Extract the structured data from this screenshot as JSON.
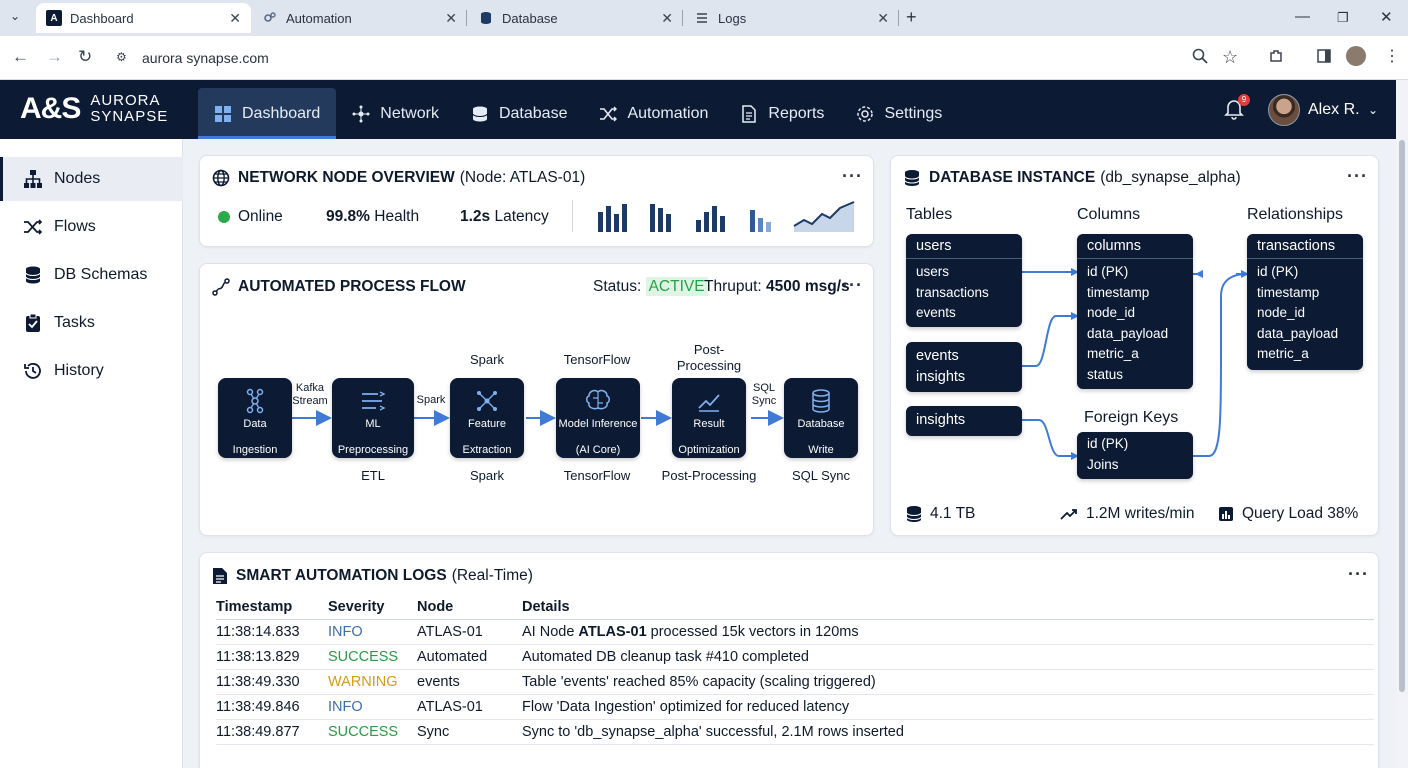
{
  "browser": {
    "tabs": [
      {
        "label": "Dashboard",
        "active": true
      },
      {
        "label": "Automation",
        "active": false
      },
      {
        "label": "Database",
        "active": false
      },
      {
        "label": "Logs",
        "active": false
      }
    ],
    "url": "aurora synapse.com"
  },
  "app": {
    "logo_mark": "A&S",
    "logo_line1": "AURORA",
    "logo_line2": "SYNAPSE",
    "nav": [
      {
        "label": "Dashboard",
        "icon": "grid-icon",
        "active": true
      },
      {
        "label": "Network",
        "icon": "network-icon"
      },
      {
        "label": "Database",
        "icon": "database-icon"
      },
      {
        "label": "Automation",
        "icon": "shuffle-icon"
      },
      {
        "label": "Reports",
        "icon": "document-icon"
      },
      {
        "label": "Settings",
        "icon": "gear-icon"
      }
    ],
    "notifications": "9",
    "user_name": "Alex R."
  },
  "sidebar": {
    "items": [
      {
        "label": "Nodes",
        "icon": "hierarchy-icon",
        "active": true
      },
      {
        "label": "Flows",
        "icon": "shuffle-icon"
      },
      {
        "label": "DB Schemas",
        "icon": "database-icon"
      },
      {
        "label": "Tasks",
        "icon": "clipboard-icon"
      },
      {
        "label": "History",
        "icon": "history-icon"
      }
    ]
  },
  "node_overview": {
    "title_bold": "NETWORK NODE OVERVIEW",
    "title_rest": "(Node: ATLAS-01)",
    "status": "Online",
    "health_value": "99.8%",
    "health_label": "Health",
    "latency_value": "1.2s",
    "latency_label": "Latency",
    "status_color": "#2aa84a"
  },
  "process_flow": {
    "title": "AUTOMATED PROCESS FLOW",
    "status_label": "Status:",
    "status_value": "ACTIVE",
    "throughput_label": "Thruput:",
    "throughput_value": "4500 msg/s",
    "nodes": [
      {
        "line1": "Data",
        "line2": "Ingestion",
        "icon": "network-icon",
        "above": "",
        "below": ""
      },
      {
        "line1": "ML",
        "line2": "Preprocessing",
        "icon": "filter-icon",
        "above": "",
        "below": "ETL"
      },
      {
        "line1": "Feature",
        "line2": "Extraction",
        "icon": "nodes-icon",
        "above": "Spark",
        "below": "Spark"
      },
      {
        "line1": "Model Inference",
        "line2": "(AI Core)",
        "icon": "brain-icon",
        "above": "TensorFlow",
        "below": "TensorFlow"
      },
      {
        "line1": "Result",
        "line2": "Optimization",
        "icon": "chart-icon",
        "above": "Post-\nProcessing",
        "below": "Post-Processing"
      },
      {
        "line1": "Database",
        "line2": "Write",
        "icon": "database-icon",
        "above": "",
        "below": "SQL Sync"
      }
    ],
    "edge_labels": [
      "Kafka\nStream",
      "Spark",
      "",
      "",
      "SQL\nSync"
    ]
  },
  "database": {
    "title_bold": "DATABASE INSTANCE",
    "title_rest": "(db_synapse_alpha)",
    "col_tables": "Tables",
    "col_columns": "Columns",
    "col_relationships": "Relationships",
    "foreign_keys_label": "Foreign Keys",
    "users_box": {
      "header": "users",
      "rows": [
        "users",
        "transactions",
        "events"
      ]
    },
    "events_box": {
      "rows": [
        "events",
        "insights"
      ]
    },
    "insights_box": {
      "header": "insights"
    },
    "columns_box": {
      "header": "columns",
      "rows": [
        "id (PK)",
        "timestamp",
        "node_id",
        "data_payload",
        "metric_a",
        "status"
      ]
    },
    "fk_box": {
      "rows": [
        "id (PK)",
        "Joins"
      ]
    },
    "transactions_box": {
      "header": "transactions",
      "rows": [
        "id (PK)",
        "timestamp",
        "node_id",
        "data_payload",
        "metric_a"
      ]
    },
    "storage": "4.1 TB",
    "writes": "1.2M writes/min",
    "query_load": "Query Load 38%"
  },
  "logs": {
    "title_bold": "SMART AUTOMATION LOGS",
    "title_rest": "(Real-Time)",
    "headers": [
      "Timestamp",
      "Severity",
      "Node",
      "Details"
    ],
    "rows": [
      {
        "timestamp": "11:38:14.833",
        "severity": "INFO",
        "node": "ATLAS-01",
        "details_pre": "AI Node ",
        "details_bold": "ATLAS-01",
        "details_post": " processed 15k vectors in 120ms"
      },
      {
        "timestamp": "11:38:13.829",
        "severity": "SUCCESS",
        "node": "Automated",
        "details_pre": "Automated DB cleanup task #410 completed",
        "details_bold": "",
        "details_post": ""
      },
      {
        "timestamp": "11:38:49.330",
        "severity": "WARNING",
        "node": "events",
        "details_pre": "Table 'events' reached 85% capacity (scaling triggered)",
        "details_bold": "",
        "details_post": ""
      },
      {
        "timestamp": "11:38:49.846",
        "severity": "INFO",
        "node": "ATLAS-01",
        "details_pre": "Flow 'Data Ingestion' optimized for reduced latency",
        "details_bold": "",
        "details_post": ""
      },
      {
        "timestamp": "11:38:49.877",
        "severity": "SUCCESS",
        "node": "Sync",
        "details_pre": "Sync to 'db_synapse_alpha' successful, 2.1M rows inserted",
        "details_bold": "",
        "details_post": ""
      }
    ],
    "severity_colors": {
      "INFO": "#3d6fae",
      "SUCCESS": "#2c9a45",
      "WARNING": "#d59a1a"
    }
  }
}
